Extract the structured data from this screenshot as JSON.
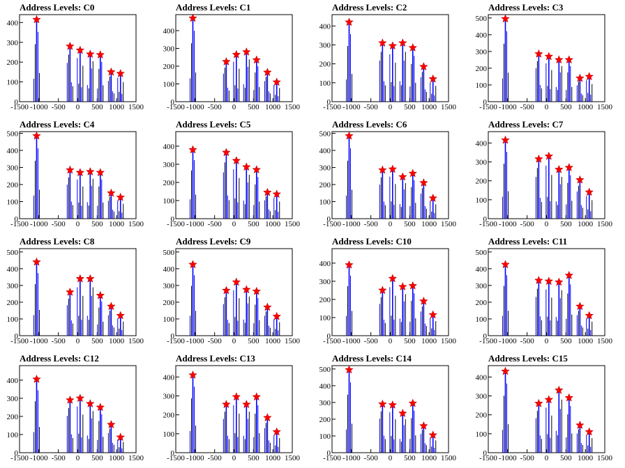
{
  "page": {
    "title_prefix": "Address Levels: "
  },
  "chart_data": [
    {
      "type": "bar",
      "title": "Address Levels: C0",
      "xlim": [
        -1500,
        1500
      ],
      "ylim": [
        0,
        440
      ],
      "yticks": [
        0,
        100,
        200,
        300,
        400
      ],
      "xticks": [
        -1500,
        -1000,
        -500,
        0,
        500,
        1000,
        1500
      ],
      "peaks": [
        {
          "x": -1060,
          "y": 415
        },
        {
          "x": -200,
          "y": 280
        },
        {
          "x": 60,
          "y": 260
        },
        {
          "x": 320,
          "y": 240
        },
        {
          "x": 580,
          "y": 237
        },
        {
          "x": 860,
          "y": 150
        },
        {
          "x": 1100,
          "y": 142
        }
      ]
    },
    {
      "type": "bar",
      "title": "Address Levels: C1",
      "xlim": [
        -1500,
        1500
      ],
      "ylim": [
        0,
        490
      ],
      "yticks": [
        0,
        100,
        200,
        300,
        400
      ],
      "xticks": [
        -1500,
        -1000,
        -500,
        0,
        500,
        1000,
        1500
      ],
      "peaks": [
        {
          "x": -1060,
          "y": 470
        },
        {
          "x": -200,
          "y": 225
        },
        {
          "x": 60,
          "y": 265
        },
        {
          "x": 320,
          "y": 280
        },
        {
          "x": 580,
          "y": 235
        },
        {
          "x": 860,
          "y": 165
        },
        {
          "x": 1100,
          "y": 110
        }
      ]
    },
    {
      "type": "bar",
      "title": "Address Levels: C2",
      "xlim": [
        -1500,
        1500
      ],
      "ylim": [
        0,
        460
      ],
      "yticks": [
        0,
        100,
        200,
        300,
        400
      ],
      "xticks": [
        -1500,
        -1000,
        -500,
        0,
        500,
        1000,
        1500
      ],
      "peaks": [
        {
          "x": -1060,
          "y": 420
        },
        {
          "x": -200,
          "y": 310
        },
        {
          "x": 60,
          "y": 295
        },
        {
          "x": 320,
          "y": 310
        },
        {
          "x": 580,
          "y": 285
        },
        {
          "x": 860,
          "y": 185
        },
        {
          "x": 1100,
          "y": 120
        }
      ]
    },
    {
      "type": "bar",
      "title": "Address Levels: C3",
      "xlim": [
        -1500,
        1500
      ],
      "ylim": [
        0,
        520
      ],
      "yticks": [
        0,
        100,
        200,
        300,
        400,
        500
      ],
      "xticks": [
        -1500,
        -1000,
        -500,
        0,
        500,
        1000,
        1500
      ],
      "peaks": [
        {
          "x": -1060,
          "y": 495
        },
        {
          "x": -200,
          "y": 285
        },
        {
          "x": 60,
          "y": 270
        },
        {
          "x": 320,
          "y": 250
        },
        {
          "x": 580,
          "y": 250
        },
        {
          "x": 860,
          "y": 140
        },
        {
          "x": 1100,
          "y": 150
        }
      ]
    },
    {
      "type": "bar",
      "title": "Address Levels: C4",
      "xlim": [
        -1500,
        1500
      ],
      "ylim": [
        0,
        510
      ],
      "yticks": [
        0,
        100,
        200,
        300,
        400,
        500
      ],
      "xticks": [
        -1500,
        -1000,
        -500,
        0,
        500,
        1000,
        1500
      ],
      "peaks": [
        {
          "x": -1060,
          "y": 485
        },
        {
          "x": -200,
          "y": 285
        },
        {
          "x": 60,
          "y": 270
        },
        {
          "x": 320,
          "y": 275
        },
        {
          "x": 580,
          "y": 270
        },
        {
          "x": 860,
          "y": 150
        },
        {
          "x": 1100,
          "y": 125
        }
      ]
    },
    {
      "type": "bar",
      "title": "Address Levels: C5",
      "xlim": [
        -1500,
        1500
      ],
      "ylim": [
        0,
        480
      ],
      "yticks": [
        0,
        100,
        200,
        300,
        400
      ],
      "xticks": [
        -1500,
        -1000,
        -500,
        0,
        500,
        1000,
        1500
      ],
      "peaks": [
        {
          "x": -1060,
          "y": 380
        },
        {
          "x": -200,
          "y": 365
        },
        {
          "x": 60,
          "y": 320
        },
        {
          "x": 320,
          "y": 285
        },
        {
          "x": 580,
          "y": 270
        },
        {
          "x": 860,
          "y": 145
        },
        {
          "x": 1100,
          "y": 135
        }
      ]
    },
    {
      "type": "bar",
      "title": "Address Levels: C6",
      "xlim": [
        -1500,
        1500
      ],
      "ylim": [
        0,
        510
      ],
      "yticks": [
        0,
        100,
        200,
        300,
        400,
        500
      ],
      "xticks": [
        -1500,
        -1000,
        -500,
        0,
        500,
        1000,
        1500
      ],
      "peaks": [
        {
          "x": -1060,
          "y": 485
        },
        {
          "x": -200,
          "y": 285
        },
        {
          "x": 60,
          "y": 290
        },
        {
          "x": 320,
          "y": 245
        },
        {
          "x": 580,
          "y": 265
        },
        {
          "x": 860,
          "y": 210
        },
        {
          "x": 1100,
          "y": 120
        }
      ]
    },
    {
      "type": "bar",
      "title": "Address Levels: C7",
      "xlim": [
        -1500,
        1500
      ],
      "ylim": [
        0,
        460
      ],
      "yticks": [
        0,
        100,
        200,
        300,
        400
      ],
      "xticks": [
        -1500,
        -1000,
        -500,
        0,
        500,
        1000,
        1500
      ],
      "peaks": [
        {
          "x": -1060,
          "y": 415
        },
        {
          "x": -200,
          "y": 315
        },
        {
          "x": 60,
          "y": 330
        },
        {
          "x": 320,
          "y": 260
        },
        {
          "x": 580,
          "y": 270
        },
        {
          "x": 860,
          "y": 205
        },
        {
          "x": 1100,
          "y": 140
        }
      ]
    },
    {
      "type": "bar",
      "title": "Address Levels: C8",
      "xlim": [
        -1500,
        1500
      ],
      "ylim": [
        0,
        520
      ],
      "yticks": [
        0,
        100,
        200,
        300,
        400,
        500
      ],
      "xticks": [
        -1500,
        -1000,
        -500,
        0,
        500,
        1000,
        1500
      ],
      "peaks": [
        {
          "x": -1060,
          "y": 440
        },
        {
          "x": -200,
          "y": 260
        },
        {
          "x": 60,
          "y": 340
        },
        {
          "x": 320,
          "y": 340
        },
        {
          "x": 580,
          "y": 240
        },
        {
          "x": 860,
          "y": 175
        },
        {
          "x": 1100,
          "y": 120
        }
      ]
    },
    {
      "type": "bar",
      "title": "Address Levels: C9",
      "xlim": [
        -1500,
        1500
      ],
      "ylim": [
        0,
        520
      ],
      "yticks": [
        0,
        100,
        200,
        300,
        400,
        500
      ],
      "xticks": [
        -1500,
        -1000,
        -500,
        0,
        500,
        1000,
        1500
      ],
      "peaks": [
        {
          "x": -1060,
          "y": 425
        },
        {
          "x": -200,
          "y": 270
        },
        {
          "x": 60,
          "y": 320
        },
        {
          "x": 320,
          "y": 275
        },
        {
          "x": 580,
          "y": 265
        },
        {
          "x": 860,
          "y": 170
        },
        {
          "x": 1100,
          "y": 115
        }
      ]
    },
    {
      "type": "bar",
      "title": "Address Levels: C10",
      "xlim": [
        -1500,
        1500
      ],
      "ylim": [
        0,
        480
      ],
      "yticks": [
        0,
        100,
        200,
        300,
        400
      ],
      "xticks": [
        -1500,
        -1000,
        -500,
        0,
        500,
        1000,
        1500
      ],
      "peaks": [
        {
          "x": -1060,
          "y": 390
        },
        {
          "x": -200,
          "y": 250
        },
        {
          "x": 60,
          "y": 315
        },
        {
          "x": 320,
          "y": 270
        },
        {
          "x": 580,
          "y": 275
        },
        {
          "x": 860,
          "y": 190
        },
        {
          "x": 1100,
          "y": 115
        }
      ]
    },
    {
      "type": "bar",
      "title": "Address Levels: C11",
      "xlim": [
        -1500,
        1500
      ],
      "ylim": [
        0,
        520
      ],
      "yticks": [
        0,
        100,
        200,
        300,
        400,
        500
      ],
      "xticks": [
        -1500,
        -1000,
        -500,
        0,
        500,
        1000,
        1500
      ],
      "peaks": [
        {
          "x": -1060,
          "y": 425
        },
        {
          "x": -200,
          "y": 330
        },
        {
          "x": 60,
          "y": 325
        },
        {
          "x": 320,
          "y": 320
        },
        {
          "x": 580,
          "y": 360
        },
        {
          "x": 860,
          "y": 175
        },
        {
          "x": 1100,
          "y": 120
        }
      ]
    },
    {
      "type": "bar",
      "title": "Address Levels: C12",
      "xlim": [
        -1500,
        1500
      ],
      "ylim": [
        0,
        480
      ],
      "yticks": [
        0,
        100,
        200,
        300,
        400
      ],
      "xticks": [
        -1500,
        -1000,
        -500,
        0,
        500,
        1000,
        1500
      ],
      "peaks": [
        {
          "x": -1060,
          "y": 405
        },
        {
          "x": -200,
          "y": 290
        },
        {
          "x": 60,
          "y": 300
        },
        {
          "x": 320,
          "y": 270
        },
        {
          "x": 580,
          "y": 250
        },
        {
          "x": 860,
          "y": 155
        },
        {
          "x": 1100,
          "y": 85
        }
      ]
    },
    {
      "type": "bar",
      "title": "Address Levels: C13",
      "xlim": [
        -1500,
        1500
      ],
      "ylim": [
        0,
        460
      ],
      "yticks": [
        0,
        100,
        200,
        300,
        400
      ],
      "xticks": [
        -1500,
        -1000,
        -500,
        0,
        500,
        1000,
        1500
      ],
      "peaks": [
        {
          "x": -1060,
          "y": 410
        },
        {
          "x": -200,
          "y": 255
        },
        {
          "x": 60,
          "y": 295
        },
        {
          "x": 320,
          "y": 255
        },
        {
          "x": 580,
          "y": 295
        },
        {
          "x": 860,
          "y": 185
        },
        {
          "x": 1100,
          "y": 110
        }
      ]
    },
    {
      "type": "bar",
      "title": "Address Levels: C14",
      "xlim": [
        -1500,
        1500
      ],
      "ylim": [
        0,
        520
      ],
      "yticks": [
        0,
        100,
        200,
        300,
        400,
        500
      ],
      "xticks": [
        -1500,
        -1000,
        -500,
        0,
        500,
        1000,
        1500
      ],
      "peaks": [
        {
          "x": -1060,
          "y": 495
        },
        {
          "x": -200,
          "y": 290
        },
        {
          "x": 60,
          "y": 285
        },
        {
          "x": 320,
          "y": 235
        },
        {
          "x": 580,
          "y": 295
        },
        {
          "x": 860,
          "y": 160
        },
        {
          "x": 1100,
          "y": 105
        }
      ]
    },
    {
      "type": "bar",
      "title": "Address Levels: C15",
      "xlim": [
        -1500,
        1500
      ],
      "ylim": [
        0,
        460
      ],
      "yticks": [
        0,
        100,
        200,
        300,
        400
      ],
      "xticks": [
        -1500,
        -1000,
        -500,
        0,
        500,
        1000,
        1500
      ],
      "peaks": [
        {
          "x": -1060,
          "y": 430
        },
        {
          "x": -200,
          "y": 260
        },
        {
          "x": 60,
          "y": 280
        },
        {
          "x": 320,
          "y": 330
        },
        {
          "x": 580,
          "y": 290
        },
        {
          "x": 860,
          "y": 145
        },
        {
          "x": 1100,
          "y": 110
        }
      ]
    }
  ],
  "colors": {
    "bar": "#0000ff",
    "marker": "#ff0000",
    "axis": "#000000",
    "frame": "#000000"
  }
}
